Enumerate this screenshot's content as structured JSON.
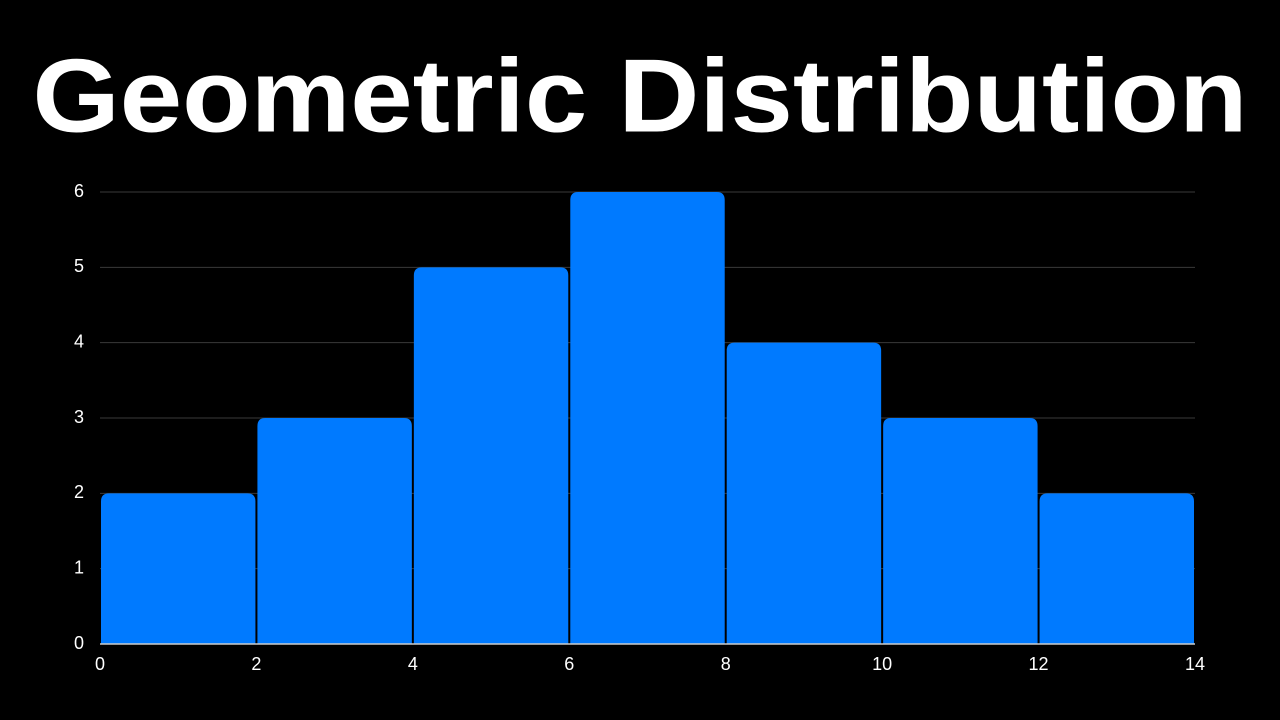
{
  "chart_data": {
    "type": "histogram",
    "title": "Geometric Distribution",
    "bins": [
      0,
      2,
      4,
      6,
      8,
      10,
      12,
      14
    ],
    "counts": [
      2,
      3,
      5,
      6,
      4,
      3,
      2
    ],
    "color": "#007aff",
    "xlim": [
      0,
      14
    ],
    "xticks": [
      0,
      2,
      4,
      6,
      8,
      10,
      12,
      14
    ],
    "ylim": [
      0,
      6
    ],
    "yticks": [
      0,
      1,
      2,
      3,
      4,
      5,
      6
    ],
    "grid": true
  }
}
